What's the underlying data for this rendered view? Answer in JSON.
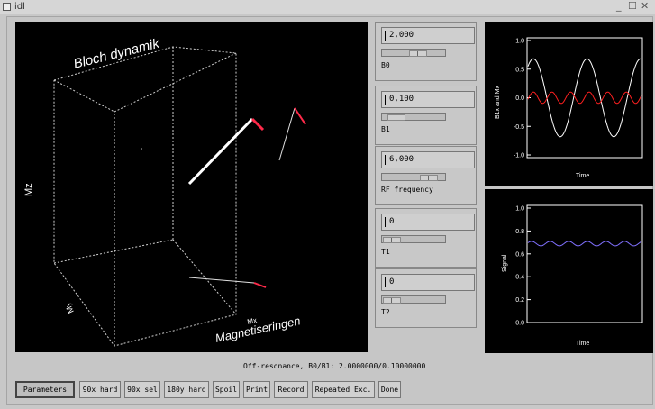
{
  "window": {
    "title": "idl",
    "controls": "_ ☐ ✕"
  },
  "view3d": {
    "title": "Bloch dynamik",
    "z_label": "Mz",
    "y_label": "My",
    "x_label": "Magnetiseringen",
    "small_label": "Mx"
  },
  "controls": [
    {
      "value": "2,000",
      "label": "B0",
      "slider": 0.45
    },
    {
      "value": "0,100",
      "label": "B1",
      "slider": 0.12
    },
    {
      "value": "6,000",
      "label": "RF frequency",
      "slider": 0.62
    },
    {
      "value": "0",
      "label": "T1",
      "slider": 0.0
    },
    {
      "value": "0",
      "label": "T2",
      "slider": 0.0
    }
  ],
  "plot1": {
    "ylabel": "B1x and Mx",
    "xlabel": "Time",
    "yticks": [
      "1.0",
      "0.5",
      "0.0",
      "-0.5",
      "-1.0"
    ],
    "colors": {
      "mx": "#ffffff",
      "b1x": "#ff2020"
    }
  },
  "plot2": {
    "ylabel": "Signal",
    "xlabel": "Time",
    "yticks": [
      "1.0",
      "0.8",
      "0.6",
      "0.4",
      "0.2",
      "0.0"
    ],
    "colors": {
      "signal": "#8070ff"
    }
  },
  "status": "Off-resonance, B0/B1: 2.0000000/0.10000000",
  "buttons": [
    "Parameters",
    "90x hard",
    "90x sel",
    "180y hard",
    "Spoil",
    "Print",
    "Record",
    "Repeated Exc.",
    "Done"
  ],
  "colors": {
    "vector": "#ffffff",
    "vector_tip": "#ff2a4a"
  }
}
